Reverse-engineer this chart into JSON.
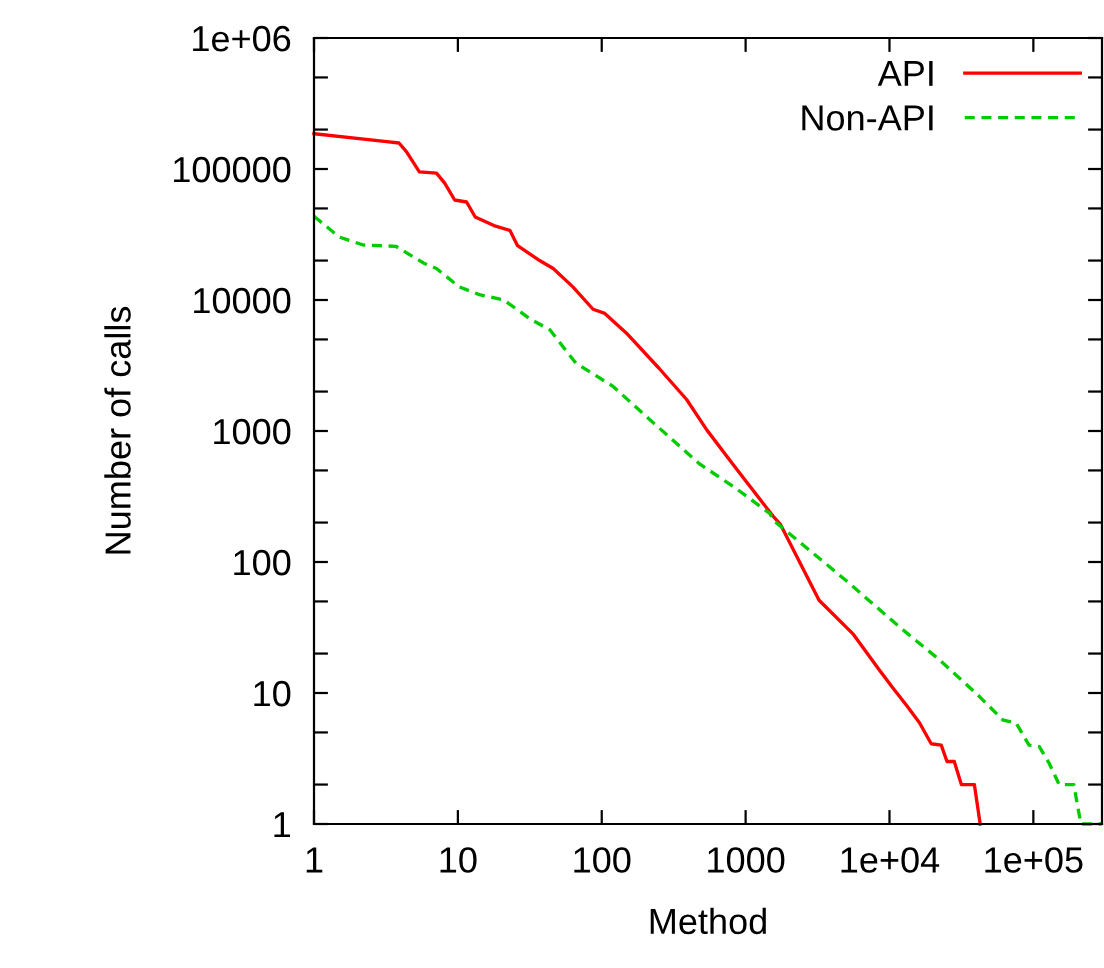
{
  "chart_data": {
    "type": "line",
    "xlabel": "Method",
    "ylabel": "Number of calls",
    "log": "xy",
    "grid": false,
    "legend": "top right",
    "marker": "none",
    "xlim": [
      1,
      300000
    ],
    "xticks": [
      1,
      10,
      100,
      1000,
      {
        "value": 10000,
        "label": "1e+04"
      },
      {
        "value": 100000,
        "label": "1e+05"
      }
    ],
    "ylim": [
      1,
      1000000
    ],
    "yticks": [
      1,
      {
        "value": 2,
        "label": null
      },
      {
        "value": 5,
        "label": null
      },
      10,
      {
        "value": 20,
        "label": null
      },
      {
        "value": 50,
        "label": null
      },
      100,
      {
        "value": 200,
        "label": null
      },
      {
        "value": 500,
        "label": null
      },
      1000,
      {
        "value": 2000,
        "label": null
      },
      {
        "value": 5000,
        "label": null
      },
      10000,
      {
        "value": 20000,
        "label": null
      },
      {
        "value": 50000,
        "label": null
      },
      100000,
      {
        "value": 200000,
        "label": null
      },
      {
        "value": 500000,
        "label": null
      },
      {
        "value": 1000000,
        "label": "1e+06"
      }
    ],
    "series": [
      {
        "name": "API",
        "color": "#ff0000",
        "line_style": "solid",
        "x": [
          1,
          3.2,
          3.9,
          4.4,
          5.4,
          7.1,
          8.1,
          9.5,
          11.5,
          13.2,
          17.8,
          23,
          26,
          37,
          46,
          63,
          87,
          105,
          148,
          251,
          389,
          537,
          813,
          1550,
          1740,
          3240,
          5620,
          8500,
          10500,
          13200,
          16200,
          19500,
          22900,
          25100,
          28200,
          31600,
          38900,
          42700
        ],
        "values": [
          186000,
          162000,
          158000,
          135000,
          95000,
          93000,
          78000,
          58000,
          56000,
          43000,
          37000,
          34000,
          26000,
          20000,
          17400,
          12600,
          8500,
          7900,
          5600,
          3000,
          1740,
          1020,
          560,
          224,
          195,
          51,
          28,
          15,
          11,
          8,
          5.9,
          4.1,
          4,
          3,
          3,
          2,
          2,
          1
        ]
      },
      {
        "name": "Non-API",
        "color": "#00cc00",
        "line_style": "dashed",
        "x": [
          1,
          1.5,
          2.2,
          3.7,
          5.8,
          7.1,
          10.2,
          14.1,
          20.9,
          31.6,
          43.7,
          66,
          120,
          204,
          479,
          813,
          1480,
          1550,
          5010,
          11700,
          22400,
          39800,
          61700,
          75900,
          93300,
          110000,
          129000,
          151000,
          191000,
          214000,
          300000
        ],
        "values": [
          43600,
          30200,
          26300,
          25700,
          19100,
          17400,
          12600,
          11000,
          10000,
          7200,
          5900,
          3300,
          2190,
          1290,
          560,
          380,
          234,
          209,
          72,
          32,
          17.8,
          10,
          6.2,
          5.9,
          4,
          3.9,
          2.9,
          2,
          2,
          1,
          1
        ]
      }
    ]
  }
}
